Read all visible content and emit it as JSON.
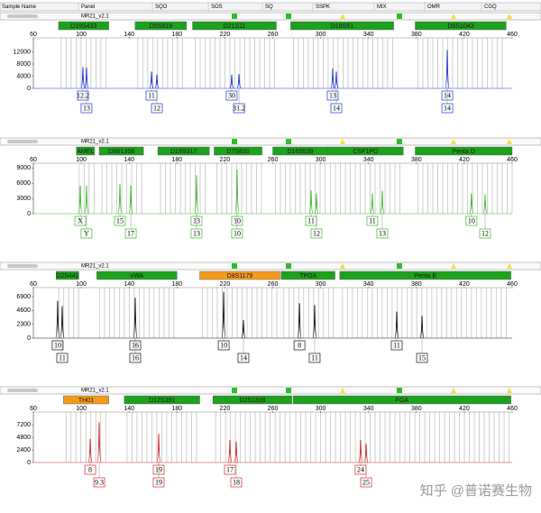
{
  "header": {
    "columns": [
      "Sample Name",
      "Panel",
      "SQO",
      "SOS",
      "SQ",
      "SSPK",
      "MIX",
      "OMR",
      "CGQ"
    ]
  },
  "chart_data": [
    {
      "type": "peaks",
      "panel": "MR21_v2.1",
      "color": "#1f35d6",
      "xlim": [
        60,
        460
      ],
      "xticks": [
        60,
        100,
        140,
        180,
        220,
        260,
        300,
        340,
        380,
        420,
        460
      ],
      "ylim": [
        0,
        16000
      ],
      "yticks": [
        0,
        4000,
        8000,
        12000
      ],
      "loci": [
        {
          "name": "D19S433",
          "start": 81,
          "end": 123,
          "color": "#1ea11e"
        },
        {
          "name": "D5S818",
          "start": 145,
          "end": 188,
          "color": "#1ea11e"
        },
        {
          "name": "D21S11",
          "start": 193,
          "end": 263,
          "color": "#1ea11e"
        },
        {
          "name": "D18S51",
          "start": 275,
          "end": 361,
          "color": "#1ea11e"
        },
        {
          "name": "D6S1043",
          "start": 379,
          "end": 455,
          "color": "#1ea11e"
        }
      ],
      "x": [
        101.4,
        104.4,
        158.7,
        163.2,
        225.7,
        231.8,
        310.1,
        313.1,
        405.8
      ],
      "values": [
        7000,
        6800,
        5500,
        4500,
        4500,
        4700,
        6500,
        5500,
        12500
      ],
      "allele_labels": [
        "12.2",
        "13",
        "11",
        "12",
        "30",
        "31.2",
        "13",
        "14",
        "14",
        "14"
      ],
      "allele_x": [
        101.4,
        104.4,
        158.7,
        163.2,
        225.7,
        231.8,
        310.1,
        313.1,
        405.8,
        405.8
      ]
    },
    {
      "type": "peaks",
      "panel": "MR21_v2.1",
      "color": "#3cba2a",
      "xlim": [
        60,
        460
      ],
      "xticks": [
        60,
        100,
        140,
        180,
        220,
        260,
        300,
        340,
        380,
        420,
        460
      ],
      "ylim": [
        0,
        9600
      ],
      "yticks": [
        0,
        3000,
        6000,
        9000
      ],
      "loci": [
        {
          "name": "AMEL",
          "start": 96,
          "end": 111,
          "color": "#1ea11e"
        },
        {
          "name": "D3S1358",
          "start": 115,
          "end": 152,
          "color": "#1ea11e"
        },
        {
          "name": "D13S317",
          "start": 164,
          "end": 207,
          "color": "#1ea11e"
        },
        {
          "name": "D7S820",
          "start": 211,
          "end": 251,
          "color": "#1ea11e"
        },
        {
          "name": "D16S539",
          "start": 260,
          "end": 306,
          "color": "#1ea11e"
        },
        {
          "name": "CSF1PO",
          "start": 306,
          "end": 369,
          "color": "#1ea11e"
        },
        {
          "name": "Penta D",
          "start": 379,
          "end": 460,
          "color": "#1ea11e"
        }
      ],
      "x": [
        99.2,
        104.4,
        132.3,
        141.4,
        196.3,
        230.2,
        292,
        296.5,
        343.2,
        351.5,
        426,
        437.4
      ],
      "values": [
        5500,
        5500,
        5800,
        5500,
        7600,
        8700,
        4600,
        4000,
        4000,
        4500,
        4000,
        3800
      ],
      "allele_labels": [
        "X",
        "Y",
        "15",
        "17",
        "13",
        "13",
        "10",
        "10",
        "11",
        "12",
        "11",
        "13",
        "10",
        "12"
      ],
      "allele_x": [
        99.2,
        104.4,
        132.3,
        141.4,
        196.3,
        196.3,
        230.2,
        230.2,
        292,
        296.5,
        343.2,
        351.5,
        426,
        437.4
      ]
    },
    {
      "type": "peaks",
      "panel": "MR21_v2.1",
      "color": "#111111",
      "xlim": [
        60,
        460
      ],
      "xticks": [
        60,
        100,
        140,
        180,
        220,
        260,
        300,
        340,
        380,
        420,
        460
      ],
      "ylim": [
        0,
        8100
      ],
      "yticks": [
        0,
        2300,
        4600,
        6900
      ],
      "loci": [
        {
          "name": "D2S441",
          "start": 79,
          "end": 98,
          "color": "#1ea11e"
        },
        {
          "name": "vWA",
          "start": 113,
          "end": 180,
          "color": "#1ea11e"
        },
        {
          "name": "D8S1179",
          "start": 199,
          "end": 266,
          "color": "#f29a1c"
        },
        {
          "name": "TPOX",
          "start": 267,
          "end": 312,
          "color": "#1ea11e"
        },
        {
          "name": "Penta E",
          "start": 316,
          "end": 459,
          "color": "#1ea11e"
        }
      ],
      "x": [
        80.3,
        84.1,
        145.1,
        219,
        235.5,
        282.3,
        295,
        363.6,
        384.7
      ],
      "values": [
        6200,
        5300,
        6700,
        7700,
        3000,
        5800,
        5500,
        4400,
        3700
      ],
      "allele_labels": [
        "10",
        "11",
        "16",
        "16",
        "10",
        "14",
        "8",
        "11",
        "11",
        "15"
      ],
      "allele_x": [
        80.3,
        84.1,
        145.1,
        145.1,
        219,
        235.5,
        282.3,
        295,
        363.6,
        384.7
      ]
    },
    {
      "type": "peaks",
      "panel": "MR21_v2.1",
      "color": "#d42a2a",
      "xlim": [
        60,
        460
      ],
      "xticks": [
        60,
        100,
        140,
        180,
        220,
        260,
        300,
        340,
        380,
        420,
        460
      ],
      "ylim": [
        0,
        9300
      ],
      "yticks": [
        0,
        2400,
        4800,
        7200
      ],
      "loci": [
        {
          "name": "TH01",
          "start": 85,
          "end": 123,
          "color": "#f29a1c"
        },
        {
          "name": "D12S391",
          "start": 136,
          "end": 199,
          "color": "#1ea11e"
        },
        {
          "name": "D2S1338",
          "start": 210,
          "end": 276,
          "color": "#1ea11e"
        },
        {
          "name": "FGA",
          "start": 277,
          "end": 459,
          "color": "#1ea11e"
        }
      ],
      "x": [
        107.5,
        115,
        164.7,
        224.2,
        229.5,
        333.4,
        338
      ],
      "values": [
        4500,
        7700,
        5500,
        4300,
        4000,
        4300,
        3600
      ],
      "allele_labels": [
        "8",
        "9.3",
        "19",
        "19",
        "17",
        "18",
        "24",
        "25"
      ],
      "allele_x": [
        107.5,
        115,
        164.7,
        164.7,
        224.2,
        229.5,
        333.4,
        338
      ]
    }
  ],
  "watermark": "知乎 @普诺赛生物"
}
